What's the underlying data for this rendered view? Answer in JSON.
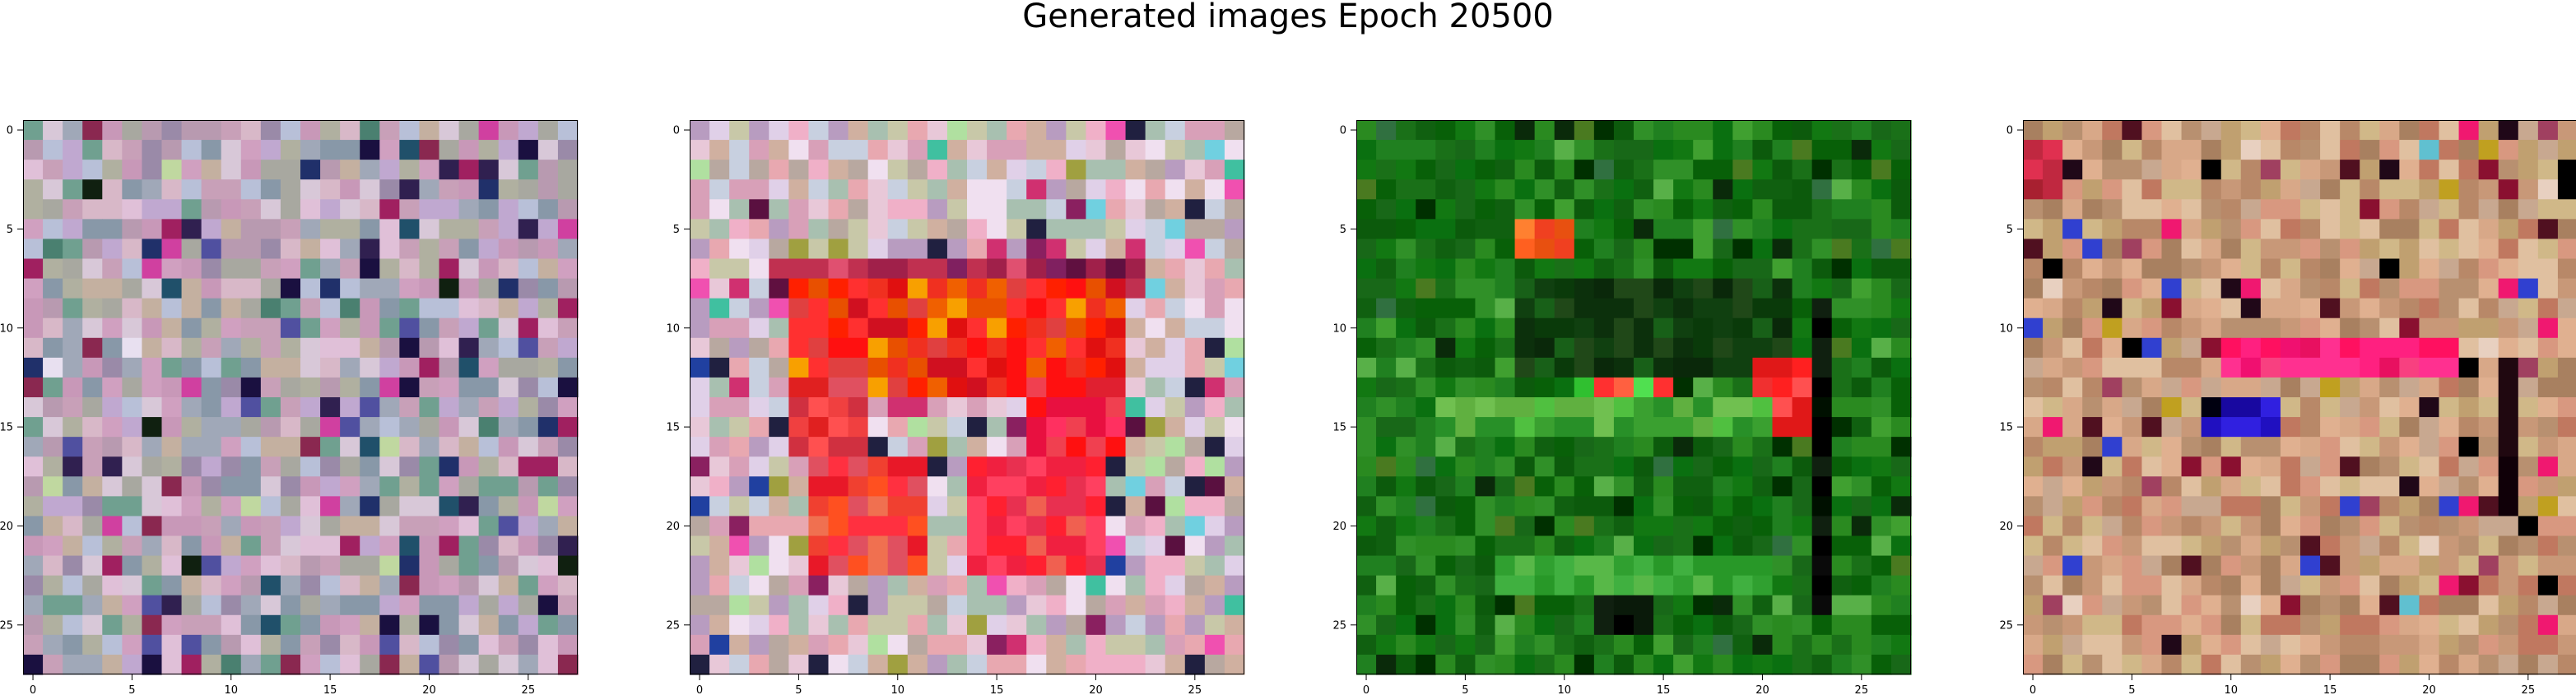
{
  "figure": {
    "title": "Generated images Epoch 20500"
  },
  "chart_data": [
    {
      "type": "heatmap",
      "title": "",
      "xlabel": "",
      "ylabel": "",
      "grid": false,
      "xlim": [
        -0.5,
        27.5
      ],
      "ylim": [
        27.5,
        -0.5
      ],
      "x_ticks": [
        0,
        5,
        10,
        15,
        20,
        25
      ],
      "y_ticks": [
        0,
        5,
        10,
        15,
        20,
        25
      ],
      "tick_labels": [
        "0",
        "5",
        "10",
        "15",
        "20",
        "25"
      ],
      "palette": [
        "#c8a0b8",
        "#b89ab0",
        "#d8b8c8",
        "#a8a8a0",
        "#c0a8d0",
        "#9a8aa8",
        "#d8c8d8",
        "#b0b0a0",
        "#8898a8",
        "#c898b8",
        "#e0c0d8",
        "#a0a8b8",
        "#c4b0a0",
        "#d0a0c0",
        "#70a090",
        "#b8c0d8"
      ],
      "accents": [
        "#1a1040",
        "#302050",
        "#5050a0",
        "#20306a",
        "#a02060",
        "#4a8070",
        "#e8e0f0",
        "#c0d8a0",
        "#20506a",
        "#8a2850",
        "#d040a0",
        "#102010"
      ],
      "accent_rate": 0.14,
      "seed": 11,
      "patches": []
    },
    {
      "type": "heatmap",
      "title": "",
      "xlabel": "",
      "ylabel": "",
      "grid": false,
      "xlim": [
        -0.5,
        27.5
      ],
      "ylim": [
        27.5,
        -0.5
      ],
      "x_ticks": [
        0,
        5,
        10,
        15,
        20,
        25
      ],
      "y_ticks": [
        0,
        5,
        10,
        15,
        20,
        25
      ],
      "tick_labels": [
        "0",
        "5",
        "10",
        "15",
        "20",
        "25"
      ],
      "palette": [
        "#e8c8d8",
        "#d8a0b8",
        "#f0b0c8",
        "#c8d0e0",
        "#b8a8a0",
        "#e0d0e8",
        "#a8c0b0",
        "#f0e0f0",
        "#d0b0a0",
        "#b89cc0",
        "#e8a8b0",
        "#c8c8a8"
      ],
      "accents": [
        "#d03070",
        "#8a2060",
        "#2040a0",
        "#40c0a0",
        "#f050b0",
        "#5a1040",
        "#b0e0a0",
        "#70d0e0",
        "#a0a040",
        "#202040"
      ],
      "accent_rate": 0.16,
      "seed": 22,
      "patches": [
        {
          "rows": [
            7,
            8
          ],
          "cols": [
            4,
            22
          ],
          "palette": [
            "#601040",
            "#a0204a",
            "#c03050",
            "#202040",
            "#206090",
            "#e05070",
            "#802060"
          ]
        },
        {
          "rows": [
            8,
            13
          ],
          "cols": [
            5,
            21
          ],
          "palette": [
            "#e01010",
            "#f03020",
            "#ff2000",
            "#e85000",
            "#ff3030",
            "#d01020",
            "#f06000",
            "#ff1010",
            "#e04040",
            "#f8a000"
          ]
        },
        {
          "rows": [
            13,
            16
          ],
          "cols": [
            5,
            8
          ],
          "palette": [
            "#e02020",
            "#f04040",
            "#e05060",
            "#d03040",
            "#ff5050"
          ]
        },
        {
          "rows": [
            13,
            16
          ],
          "cols": [
            17,
            21
          ],
          "palette": [
            "#e02030",
            "#ff1010",
            "#f04050",
            "#e81040",
            "#ff3060"
          ]
        },
        {
          "rows": [
            17,
            22
          ],
          "cols": [
            6,
            11
          ],
          "palette": [
            "#ff5020",
            "#f04030",
            "#e81828",
            "#f07050",
            "#ff3040",
            "#e05060"
          ]
        },
        {
          "rows": [
            17,
            22
          ],
          "cols": [
            14,
            20
          ],
          "palette": [
            "#e83050",
            "#ff4060",
            "#f02040",
            "#f06050",
            "#ff2030"
          ]
        }
      ]
    },
    {
      "type": "heatmap",
      "title": "",
      "xlabel": "",
      "ylabel": "",
      "grid": false,
      "xlim": [
        -0.5,
        27.5
      ],
      "ylim": [
        27.5,
        -0.5
      ],
      "x_ticks": [
        0,
        5,
        10,
        15,
        20,
        25
      ],
      "y_ticks": [
        0,
        5,
        10,
        15,
        20,
        25
      ],
      "tick_labels": [
        "0",
        "5",
        "10",
        "15",
        "20",
        "25"
      ],
      "palette": [
        "#106010",
        "#0a7010",
        "#186818",
        "#208020",
        "#0c5a0c",
        "#2a8a20",
        "#127812",
        "#086008",
        "#1a7018",
        "#309028"
      ],
      "accents": [
        "#003000",
        "#40a030",
        "#58b048",
        "#0a2a0a",
        "#4a7a20",
        "#307040"
      ],
      "accent_rate": 0.16,
      "seed": 33,
      "patches": [
        {
          "rows": [
            8,
            12
          ],
          "cols": [
            8,
            21
          ],
          "palette": [
            "#0a3a0a",
            "#104010",
            "#204818",
            "#0c300c",
            "#186018",
            "#0a280a"
          ]
        },
        {
          "rows": [
            13,
            15
          ],
          "cols": [
            11,
            15
          ],
          "palette": [
            "#e84040",
            "#ff6040",
            "#40d040",
            "#30c030",
            "#f08080",
            "#ff3030",
            "#50e050"
          ]
        },
        {
          "rows": [
            12,
            15
          ],
          "cols": [
            20,
            22
          ],
          "palette": [
            "#ff2020",
            "#f03030",
            "#ff5050",
            "#e01818"
          ]
        },
        {
          "rows": [
            9,
            24
          ],
          "cols": [
            23,
            23
          ],
          "palette": [
            "#000000",
            "#0a0a0a",
            "#102010",
            "#001000"
          ]
        },
        {
          "rows": [
            14,
            15
          ],
          "cols": [
            4,
            20
          ],
          "palette": [
            "#60b040",
            "#3aa030",
            "#50c040",
            "#289028",
            "#70c050"
          ]
        },
        {
          "rows": [
            22,
            23
          ],
          "cols": [
            7,
            20
          ],
          "palette": [
            "#30a030",
            "#40b040",
            "#289828",
            "#58b848"
          ]
        },
        {
          "rows": [
            5,
            6
          ],
          "cols": [
            8,
            10
          ],
          "palette": [
            "#ff6020",
            "#f04020",
            "#ff8030",
            "#e85010"
          ]
        },
        {
          "rows": [
            24,
            25
          ],
          "cols": [
            12,
            14
          ],
          "palette": [
            "#000000",
            "#0a1a0a",
            "#102010"
          ]
        }
      ]
    },
    {
      "type": "heatmap",
      "title": "",
      "xlabel": "",
      "ylabel": "",
      "grid": false,
      "xlim": [
        -0.5,
        27.5
      ],
      "ylim": [
        27.5,
        -0.5
      ],
      "x_ticks": [
        0,
        5,
        10,
        15,
        20,
        25
      ],
      "y_ticks": [
        0,
        5,
        10,
        15,
        20,
        25
      ],
      "tick_labels": [
        "0",
        "5",
        "10",
        "15",
        "20",
        "25"
      ],
      "palette": [
        "#c89878",
        "#d8a888",
        "#b88868",
        "#e0b090",
        "#c0a070",
        "#d0b888",
        "#a88060",
        "#d89880",
        "#c8a890",
        "#b89070",
        "#e0c0a0",
        "#c07860"
      ],
      "accents": [
        "#200818",
        "#501020",
        "#8a1030",
        "#c0a020",
        "#3040d0",
        "#a04060",
        "#000000",
        "#e8d0c0",
        "#60c0d0",
        "#f01870"
      ],
      "accent_rate": 0.14,
      "seed": 44,
      "patches": [
        {
          "rows": [
            11,
            12
          ],
          "cols": [
            10,
            21
          ],
          "palette": [
            "#ff2080",
            "#f01070",
            "#ff3090",
            "#e81060",
            "#f84080",
            "#ff1060"
          ]
        },
        {
          "rows": [
            14,
            15
          ],
          "cols": [
            9,
            12
          ],
          "palette": [
            "#2010c0",
            "#3020e0",
            "#1808a0",
            "#5060ff",
            "#000010"
          ]
        },
        {
          "rows": [
            12,
            19
          ],
          "cols": [
            24,
            24
          ],
          "palette": [
            "#000000",
            "#200810",
            "#100008"
          ]
        },
        {
          "rows": [
            1,
            3
          ],
          "cols": [
            0,
            1
          ],
          "palette": [
            "#c02840",
            "#e03050",
            "#a82030"
          ]
        }
      ]
    }
  ]
}
